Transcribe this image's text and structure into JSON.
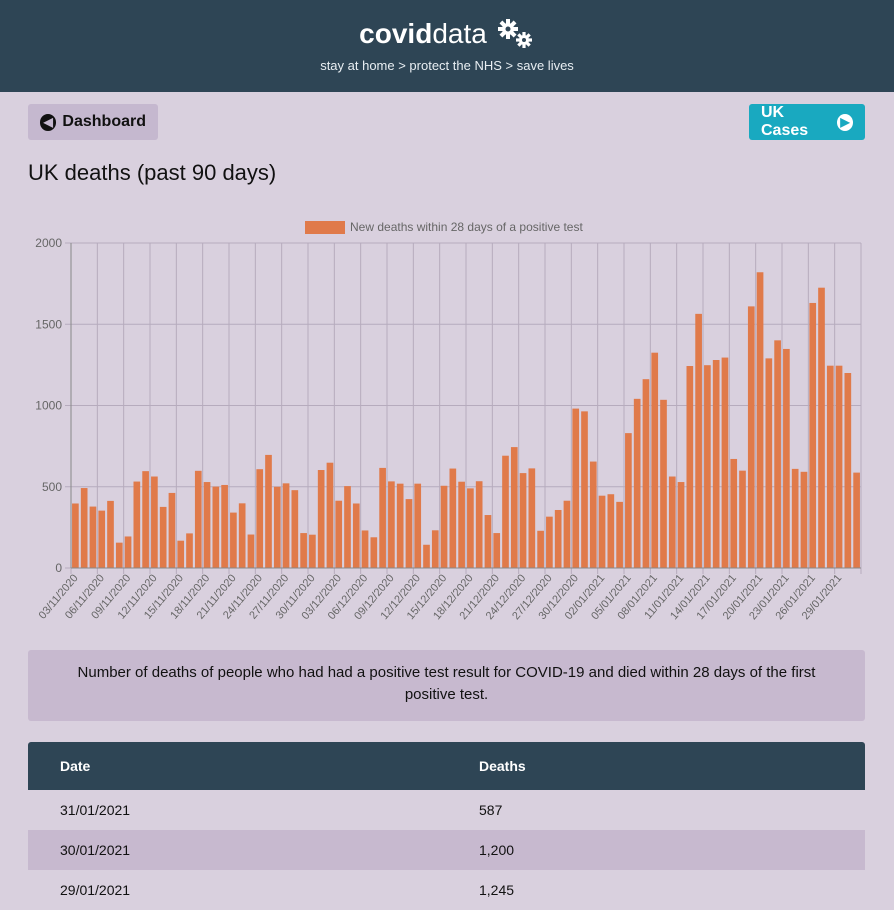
{
  "header": {
    "brand_bold": "covid",
    "brand_light": "data",
    "tagline": "stay at home > protect the NHS > save lives"
  },
  "nav": {
    "back_label": "Dashboard",
    "next_label": "UK Cases"
  },
  "page_title": "UK deaths (past 90 days)",
  "note": "Number of deaths of people who had had a positive test result for COVID-19 and died within 28 days of the first positive test.",
  "table": {
    "headers": [
      "Date",
      "Deaths"
    ],
    "rows": [
      {
        "date": "31/01/2021",
        "deaths": "587"
      },
      {
        "date": "30/01/2021",
        "deaths": "1,200"
      },
      {
        "date": "29/01/2021",
        "deaths": "1,245"
      }
    ]
  },
  "colors": {
    "bar": "#e07a4a",
    "header_bg": "#2e4555",
    "accent": "#19a9c0"
  },
  "chart_data": {
    "type": "bar",
    "legend": "New deaths within 28 days of a positive test",
    "legend_position": "top",
    "ylim": [
      0,
      2000
    ],
    "yticks": [
      0,
      500,
      1000,
      1500,
      2000
    ],
    "grid": true,
    "x_tick_labels": [
      "03/11/2020",
      "06/11/2020",
      "09/11/2020",
      "12/11/2020",
      "15/11/2020",
      "18/11/2020",
      "21/11/2020",
      "24/11/2020",
      "27/11/2020",
      "30/11/2020",
      "03/12/2020",
      "06/12/2020",
      "09/12/2020",
      "12/12/2020",
      "15/12/2020",
      "18/12/2020",
      "21/12/2020",
      "24/12/2020",
      "27/12/2020",
      "30/12/2020",
      "02/01/2021",
      "05/01/2021",
      "08/01/2021",
      "11/01/2021",
      "14/01/2021",
      "17/01/2021",
      "20/01/2021",
      "23/01/2021",
      "26/01/2021",
      "29/01/2021"
    ],
    "values": [
      397,
      492,
      378,
      353,
      413,
      156,
      194,
      532,
      596,
      563,
      376,
      462,
      168,
      213,
      598,
      529,
      501,
      511,
      341,
      398,
      206,
      608,
      696,
      500,
      521,
      479,
      215,
      205,
      603,
      648,
      414,
      504,
      397,
      231,
      189,
      616,
      533,
      519,
      424,
      519,
      143,
      232,
      506,
      612,
      531,
      490,
      534,
      326,
      215,
      691,
      744,
      584,
      613,
      229,
      316,
      357,
      414,
      981,
      964,
      655,
      445,
      454,
      407,
      830,
      1041,
      1162,
      1325,
      1035,
      563,
      529,
      1243,
      1564,
      1248,
      1280,
      1295,
      671,
      599,
      1610,
      1820,
      1290,
      1401,
      1348,
      610,
      592,
      1631,
      1725,
      1245,
      1245,
      1200,
      587
    ]
  }
}
